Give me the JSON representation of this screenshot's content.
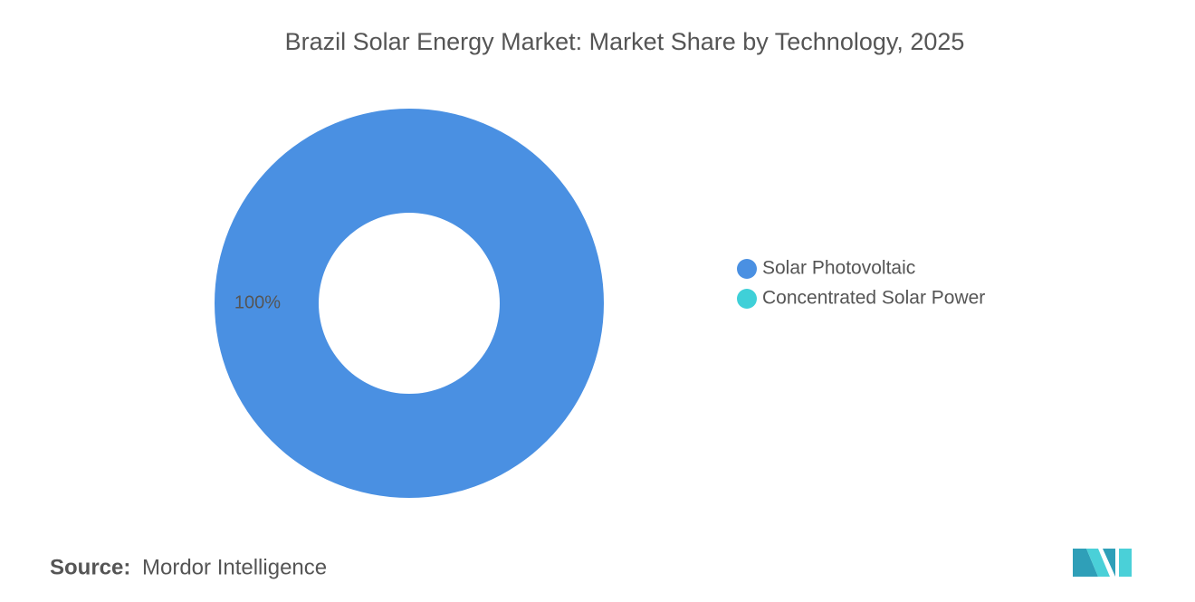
{
  "chart_data": {
    "type": "donut",
    "title": "Brazil Solar Energy Market: Market Share by Technology, 2025",
    "categories": [
      "Solar Photovoltaic",
      "Concentrated Solar Power"
    ],
    "values": [
      100,
      0
    ],
    "value_labels": [
      "100%",
      null
    ],
    "colors": [
      "#4a90e2",
      "#3fd0d8"
    ],
    "legend": "right",
    "source_label": "Source:",
    "source": "Mordor Intelligence"
  }
}
